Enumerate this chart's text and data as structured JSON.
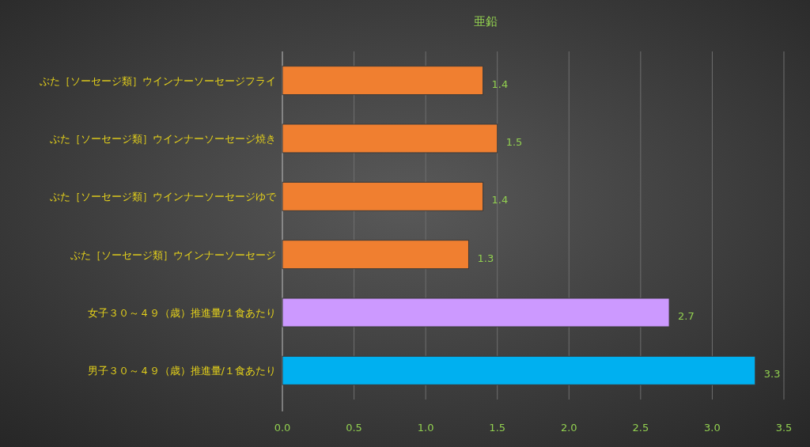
{
  "chart_data": {
    "type": "bar",
    "title": "亜鉛",
    "orientation": "horizontal",
    "categories": [
      "ぶた［ソーセージ類］ウインナーソーセージフライ",
      "ぶた［ソーセージ類］ウインナーソーセージ焼き",
      "ぶた［ソーセージ類］ウインナーソーセージゆで",
      "ぶた［ソーセージ類］ウインナーソーセージ",
      "女子３０～４９（歳）推進量/１食あたり",
      "男子３０～４９（歳）推進量/１食あたり"
    ],
    "values": [
      1.4,
      1.5,
      1.4,
      1.3,
      2.7,
      3.3
    ],
    "colors": [
      "#f07f30",
      "#f07f30",
      "#f07f30",
      "#f07f30",
      "#cc99ff",
      "#00b0f0"
    ],
    "xlim": [
      0,
      3.5
    ],
    "xticks": [
      {
        "value": 0,
        "label": "0.0"
      },
      0.5,
      {
        "value": 1,
        "label": "1.0"
      },
      1.5,
      {
        "value": 2,
        "label": "2.0"
      },
      2.5,
      {
        "value": 3,
        "label": "3.0"
      },
      3.5
    ],
    "grid": "x",
    "data_labels": true
  }
}
